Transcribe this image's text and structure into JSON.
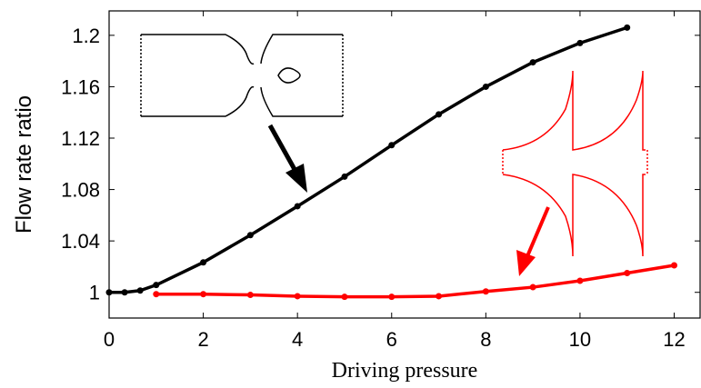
{
  "chart_data": {
    "type": "line",
    "xlabel": "Driving pressure",
    "ylabel": "Flow rate ratio",
    "xlim": [
      0,
      12.55
    ],
    "xticks": [
      0,
      2,
      4,
      6,
      8,
      10,
      12
    ],
    "ylim": [
      0.98,
      1.219
    ],
    "yticks": [
      1,
      1.04,
      1.08,
      1.12,
      1.16,
      1.2
    ],
    "series": [
      {
        "color": "#000000",
        "x": [
          0,
          0.33,
          0.66,
          1,
          2,
          3,
          4,
          5,
          6,
          7,
          8,
          9,
          10,
          11
        ],
        "values": [
          1.0,
          1.0,
          1.0014,
          1.0057,
          1.0233,
          1.0445,
          1.067,
          1.09,
          1.1145,
          1.1385,
          1.16,
          1.179,
          1.194,
          1.206
        ]
      },
      {
        "color": "#ff0000",
        "x": [
          1,
          2,
          3,
          4,
          5,
          6,
          7,
          8,
          9,
          10,
          11,
          12
        ],
        "values": [
          0.9986,
          0.9986,
          0.998,
          0.997,
          0.9965,
          0.9965,
          0.997,
          1.0007,
          1.004,
          1.009,
          1.015,
          1.021
        ]
      }
    ]
  }
}
